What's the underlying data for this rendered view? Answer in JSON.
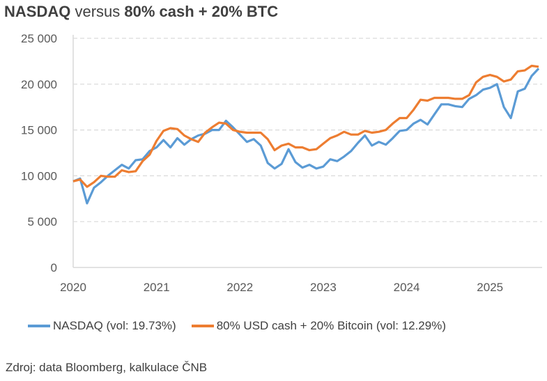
{
  "chart_data": {
    "type": "line",
    "title_parts": [
      "NASDAQ",
      " versus ",
      "80% cash + 20% BTC"
    ],
    "xlabel": "",
    "ylabel": "",
    "x_start": "2020-01",
    "x_end": "2025-08",
    "x_frequency": "monthly",
    "x_ticks": [
      "2020",
      "2021",
      "2022",
      "2023",
      "2024",
      "2025"
    ],
    "y_ticks": [
      "0",
      "5 000",
      "10 000",
      "15 000",
      "20 000",
      "25 000"
    ],
    "y_tick_values": [
      0,
      5000,
      10000,
      15000,
      20000,
      25000
    ],
    "ylim": [
      0,
      25000
    ],
    "grid": "horizontal-dashed",
    "legend_position": "bottom",
    "series": [
      {
        "name": "NASDAQ (vol: 19.73%)",
        "color": "#5B9BD5",
        "values": [
          9400,
          9700,
          7000,
          8700,
          9300,
          10000,
          10600,
          11200,
          10800,
          11700,
          11800,
          12700,
          13100,
          13900,
          13100,
          14100,
          13400,
          14000,
          14400,
          14600,
          15000,
          15000,
          16000,
          15300,
          14500,
          13700,
          14000,
          13300,
          11400,
          10800,
          11300,
          12900,
          11500,
          10900,
          11200,
          10800,
          11000,
          11800,
          11600,
          12100,
          12700,
          13600,
          14400,
          13300,
          13700,
          13400,
          14100,
          14900,
          15000,
          15700,
          16100,
          15600,
          16700,
          17800,
          17800,
          17600,
          17500,
          18400,
          18800,
          19400,
          19600,
          20000,
          17500,
          16300,
          19200,
          19500,
          20900,
          21700
        ]
      },
      {
        "name": "80% USD cash + 20% Bitcoin (vol: 12.29%)",
        "color": "#ED7D31",
        "values": [
          9400,
          9600,
          8800,
          9300,
          10000,
          9900,
          9900,
          10600,
          10400,
          10500,
          11600,
          12300,
          13800,
          14900,
          15200,
          15100,
          14400,
          14000,
          13700,
          14700,
          15300,
          15800,
          15700,
          15000,
          14800,
          14700,
          14700,
          14700,
          14000,
          12800,
          13300,
          13500,
          13100,
          13100,
          12800,
          12900,
          13500,
          14100,
          14400,
          14800,
          14500,
          14500,
          14900,
          14700,
          14800,
          15000,
          15700,
          16300,
          16300,
          17200,
          18300,
          18200,
          18500,
          18500,
          18500,
          18400,
          18400,
          18800,
          20200,
          20800,
          21000,
          20800,
          20300,
          20500,
          21400,
          21500,
          22000,
          21900
        ]
      }
    ]
  },
  "source": "Zdroj: data Bloomberg, kalkulace ČNB"
}
